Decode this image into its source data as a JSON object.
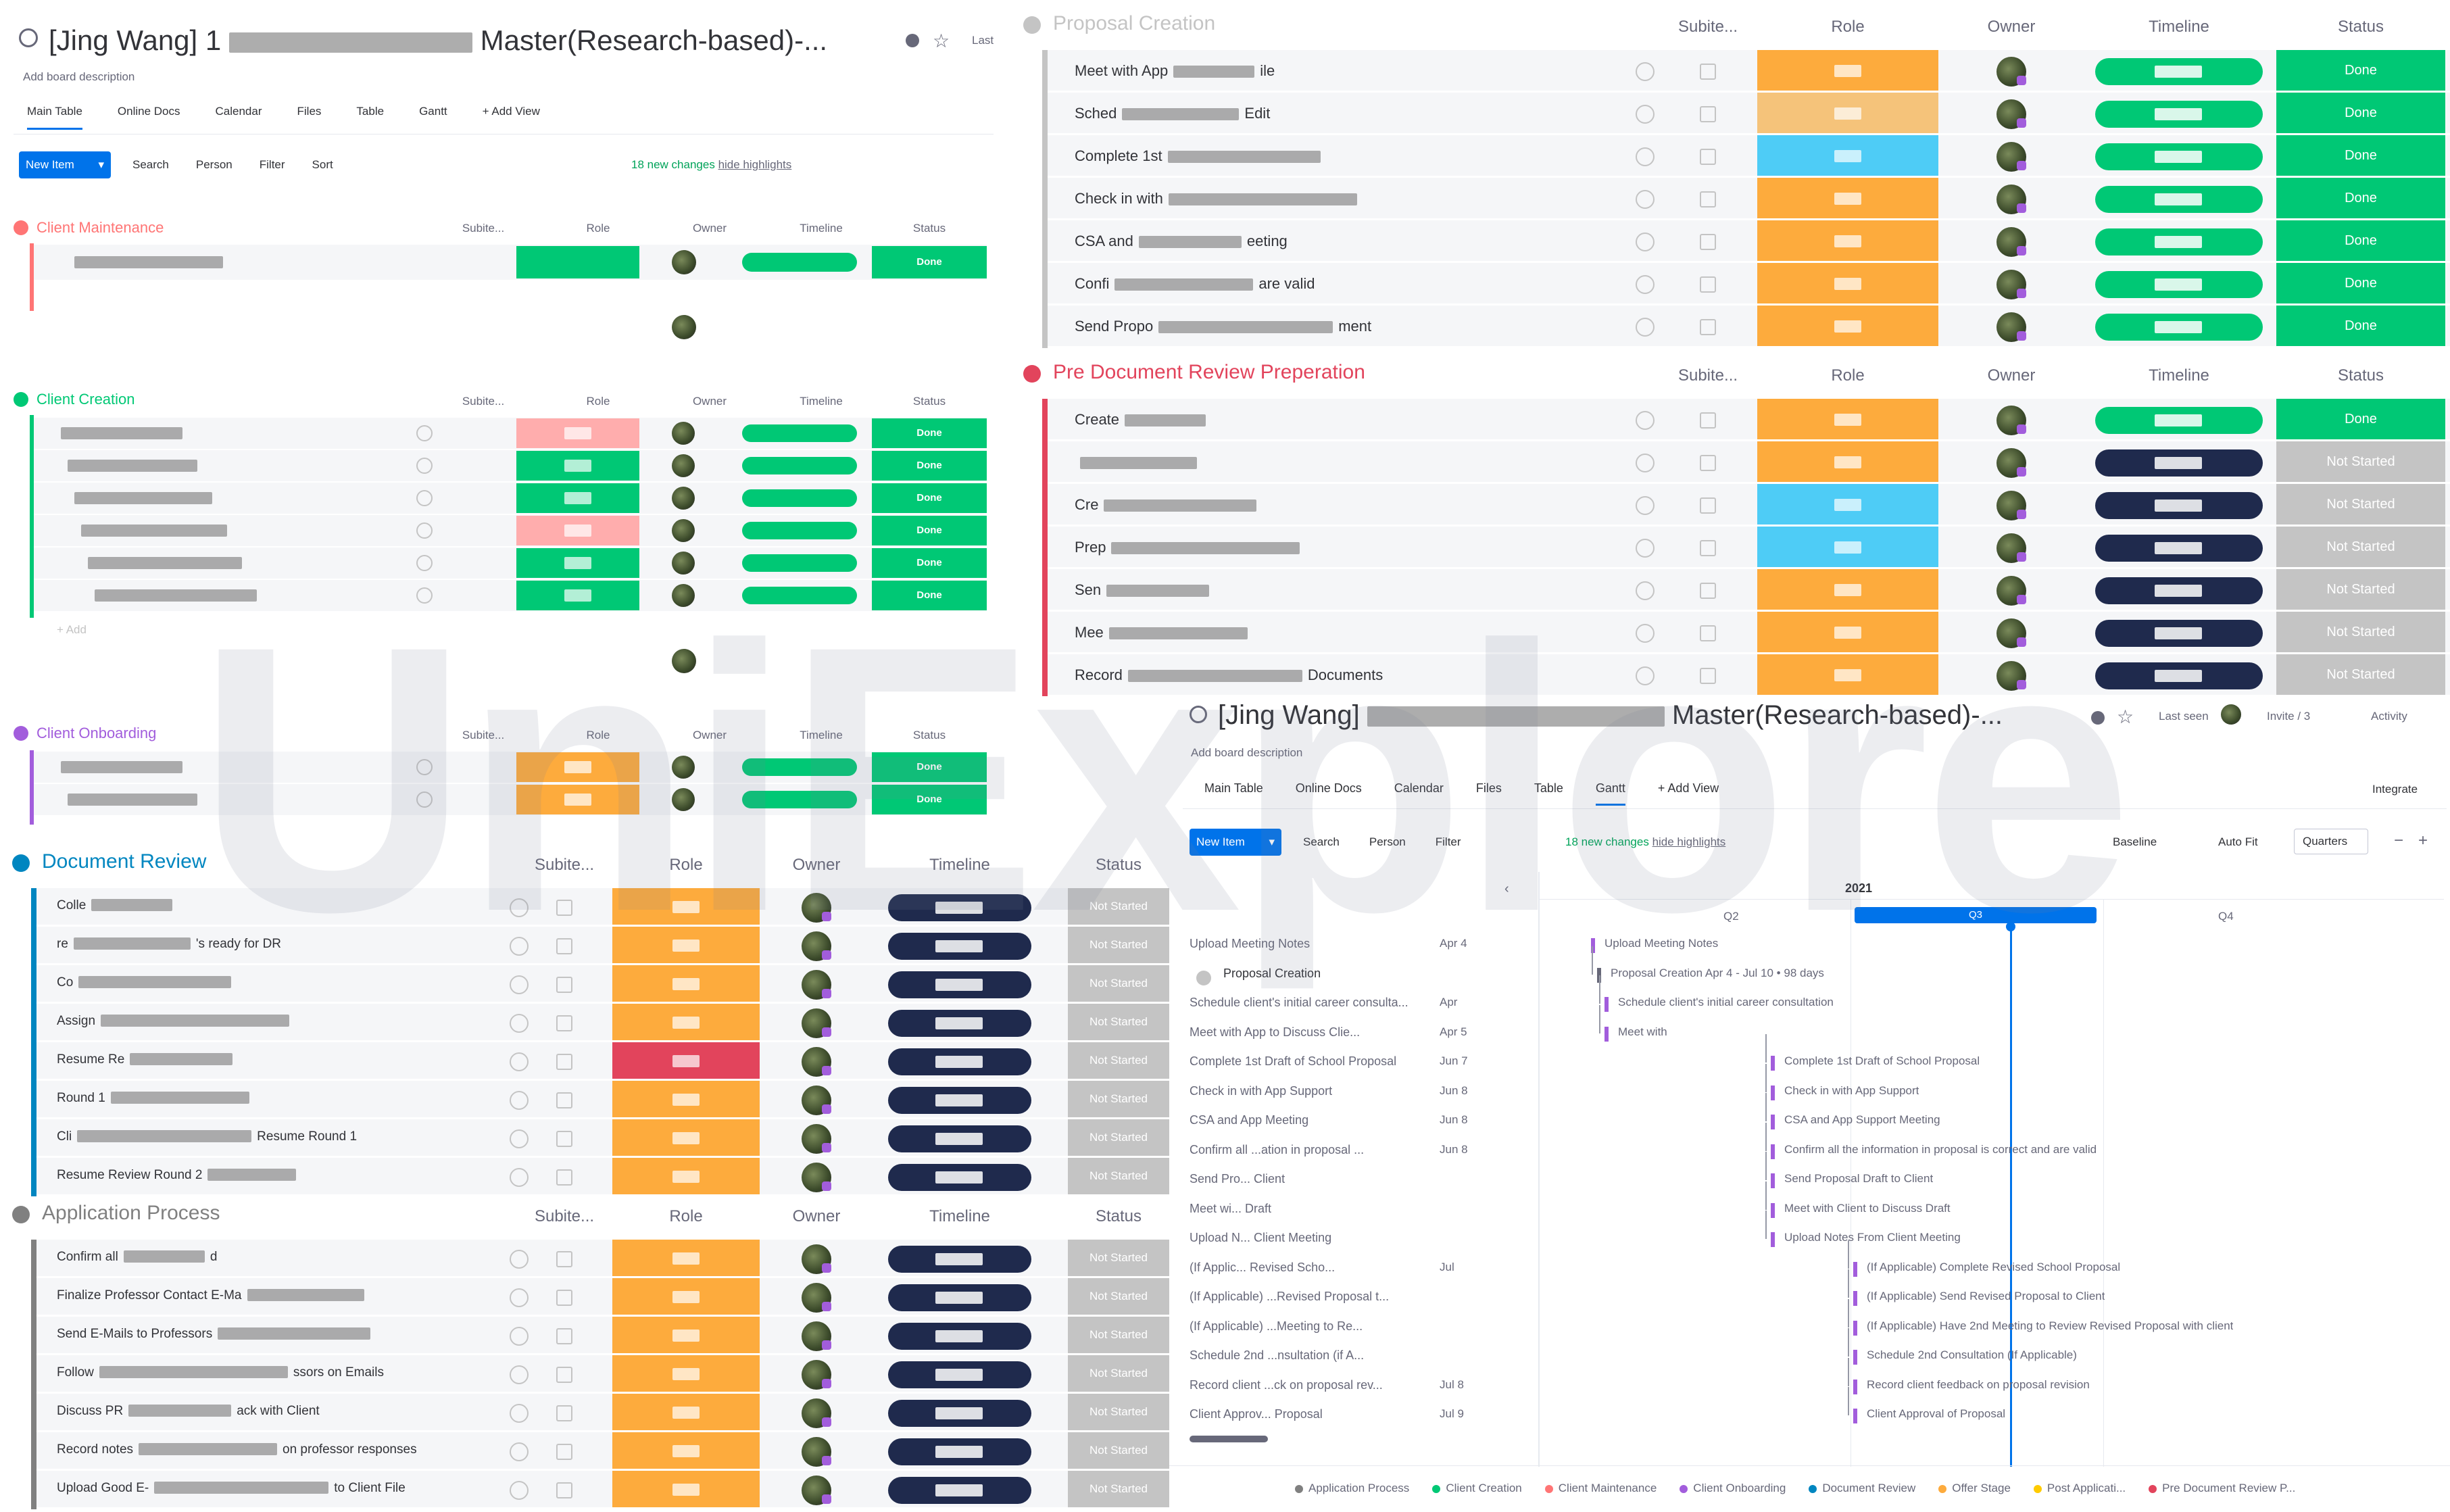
{
  "board_a": {
    "title": "[Jing Wang] 1",
    "title_suffix": "Master(Research-based)-...",
    "description": "Add board description",
    "last_label": "Last",
    "views": [
      "Main Table",
      "Online Docs",
      "Calendar",
      "Files",
      "Table",
      "Gantt",
      "+ Add View"
    ],
    "new_item": "New Item",
    "toolbar": [
      "Search",
      "Person",
      "Filter",
      "Sort"
    ],
    "changes": "18 new changes",
    "hide": "hide highlights",
    "groups": [
      {
        "name": "Client Maintenance",
        "color": "#ff7575",
        "cols": [
          "Subite...",
          "Role",
          "Owner",
          "Timeline",
          "Status"
        ],
        "status": [
          "Done"
        ]
      },
      {
        "name": "Client Creation",
        "color": "#00c875",
        "cols": [
          "Subite...",
          "Role",
          "Owner",
          "Timeline",
          "Status"
        ],
        "status": [
          "Done",
          "Done",
          "Done",
          "Done",
          "Done",
          "Done"
        ],
        "add": "+ Add"
      },
      {
        "name": "Client Onboarding",
        "color": "#a25ddc",
        "cols": [
          "Subite...",
          "Role",
          "Owner",
          "Timeline",
          "Status"
        ],
        "status": [
          "Done",
          "Done"
        ]
      }
    ]
  },
  "board_b": {
    "groups": [
      {
        "name": "Proposal Creation",
        "color": "#c4c4c4",
        "cols": [
          "Subite...",
          "Role",
          "Owner",
          "Timeline",
          "Status"
        ],
        "rows": [
          "Meet with App",
          "Sched",
          "Complete 1st",
          "Check in with",
          "CSA and",
          "Confi",
          "Send Propo"
        ],
        "row_suffix": [
          "ile",
          "Edit",
          "",
          "",
          "eeting",
          "are valid",
          "ment"
        ],
        "status": [
          "Done",
          "Done",
          "Done",
          "Done",
          "Done",
          "Done",
          "Done"
        ]
      },
      {
        "name": "Pre Document Review Preperation",
        "color": "#e2445c",
        "cols": [
          "Subite...",
          "Role",
          "Owner",
          "Timeline",
          "Status"
        ],
        "rows": [
          "Create",
          "",
          "Cre",
          "Prep",
          "Sen",
          "Mee",
          "Record"
        ],
        "row_suffix": [
          "",
          "",
          "",
          "",
          "",
          "",
          "Documents"
        ],
        "status": [
          "Done",
          "Not Started",
          "Not Started",
          "Not Started",
          "Not Started",
          "Not Started",
          "Not Started"
        ]
      }
    ]
  },
  "board_c": {
    "groups": [
      {
        "name": "Document Review",
        "color": "#0086c0",
        "cols": [
          "Subite...",
          "Role",
          "Owner",
          "Timeline",
          "Status"
        ],
        "rows": [
          "Colle",
          "re",
          "Co",
          "Assign",
          "Resume Re",
          "Round 1",
          "Cli",
          "Resume Review Round 2"
        ],
        "row_suffix": [
          "",
          "'s ready for DR",
          "",
          "",
          "",
          "",
          "Resume Round 1",
          ""
        ],
        "status": [
          "Not Started",
          "Not Started",
          "Not Started",
          "Not Started",
          "Not Started",
          "Not Started",
          "Not Started",
          "Not Started"
        ]
      },
      {
        "name": "Application Process",
        "color": "#808080",
        "cols": [
          "Subite...",
          "Role",
          "Owner",
          "Timeline",
          "Status"
        ],
        "rows": [
          "Confirm all",
          "Finalize Professor Contact E-Ma",
          "Send E-Mails to Professors",
          "Follow",
          "Discuss PR",
          "Record notes",
          "Upload Good E-"
        ],
        "row_suffix": [
          "d",
          "",
          "",
          "ssors on Emails",
          "ack with Client",
          "on professor responses",
          "to Client File"
        ],
        "status": [
          "Not Started",
          "Not Started",
          "Not Started",
          "Not Started",
          "Not Started",
          "Not Started",
          "Not Started"
        ]
      }
    ]
  },
  "board_d": {
    "title": "[Jing Wang]",
    "title_suffix": "Master(Research-based)-...",
    "description": "Add board description",
    "last_seen": "Last seen",
    "invite": "Invite / 3",
    "activity": "Activity",
    "views": [
      "Main Table",
      "Online Docs",
      "Calendar",
      "Files",
      "Table",
      "Gantt",
      "+ Add View"
    ],
    "integrate": "Integrate",
    "new_item": "New Item",
    "toolbar": [
      "Search",
      "Person",
      "Filter"
    ],
    "changes": "18 new changes",
    "hide": "hide highlights",
    "baseline": "Baseline",
    "autofit": "Auto Fit",
    "quarters": "Quarters",
    "year": "2021",
    "quarters_list": [
      "Q2",
      "Q3",
      "Q4"
    ],
    "tasks": [
      {
        "name": "Upload Meeting Notes",
        "date": "Apr 4"
      },
      {
        "name": "Proposal Creation",
        "date": ""
      },
      {
        "name": "Schedule client's initial career consulta...",
        "date": "Apr"
      },
      {
        "name": "Meet with App to Discuss Clie...",
        "date": "Apr 5"
      },
      {
        "name": "Complete 1st Draft of School Proposal",
        "date": "Jun 7"
      },
      {
        "name": "Check in with App Support",
        "date": "Jun 8"
      },
      {
        "name": "CSA and App Meeting",
        "date": "Jun 8"
      },
      {
        "name": "Confirm all ...ation in proposal ...",
        "date": "Jun 8"
      },
      {
        "name": "Send Pro... Client",
        "date": ""
      },
      {
        "name": "Meet wi... Draft",
        "date": ""
      },
      {
        "name": "Upload N... Client Meeting",
        "date": ""
      },
      {
        "name": "(If Applic... Revised Scho...",
        "date": "Jul"
      },
      {
        "name": "(If Applicable) ...Revised Proposal t...",
        "date": ""
      },
      {
        "name": "(If Applicable) ...Meeting to Re...",
        "date": ""
      },
      {
        "name": "Schedule 2nd ...nsultation (if A...",
        "date": ""
      },
      {
        "name": "Record client ...ck on proposal rev...",
        "date": "Jul 8"
      },
      {
        "name": "Client Approv... Proposal",
        "date": "Jul 9"
      }
    ],
    "bar_labels": [
      "Upload Meeting Notes",
      "Proposal Creation  Apr 4 - Jul 10 • 98 days",
      "Schedule client's initial career consultation",
      "Meet with",
      "Complete 1st Draft of School Proposal",
      "Check in with App Support",
      "CSA and App Support Meeting",
      "Confirm all the information in proposal is correct and are valid",
      "Send Proposal Draft to Client",
      "Meet with Client to Discuss Draft",
      "Upload Notes From Client Meeting",
      "(If Applicable) Complete Revised School Proposal",
      "(If Applicable) Send Revised Proposal to Client",
      "(If Applicable) Have 2nd Meeting to Review Revised Proposal with client",
      "Schedule 2nd Consultation (If Applicable)",
      "Record client feedback on proposal revision",
      "Client Approval of Proposal"
    ],
    "legend": [
      {
        "label": "Application Process",
        "color": "#808080"
      },
      {
        "label": "Client Creation",
        "color": "#00c875"
      },
      {
        "label": "Client Maintenance",
        "color": "#ff7575"
      },
      {
        "label": "Client Onboarding",
        "color": "#a25ddc"
      },
      {
        "label": "Document Review",
        "color": "#0086c0"
      },
      {
        "label": "Offer Stage",
        "color": "#fdab3d"
      },
      {
        "label": "Post Applicati...",
        "color": "#ffcb00"
      },
      {
        "label": "Pre Document Review P...",
        "color": "#e2445c"
      }
    ]
  },
  "watermark": "UniExplore",
  "colors": {
    "done": "#00c875",
    "not_started": "#c4c4c4",
    "role_orange": "#fdab3d",
    "role_blue": "#4eccf6",
    "role_red": "#e2445c",
    "role_pink": "#ffadad",
    "timeline_dark": "#1f2a4d",
    "timeline_green": "#00c875",
    "accent": "#0073ea"
  }
}
